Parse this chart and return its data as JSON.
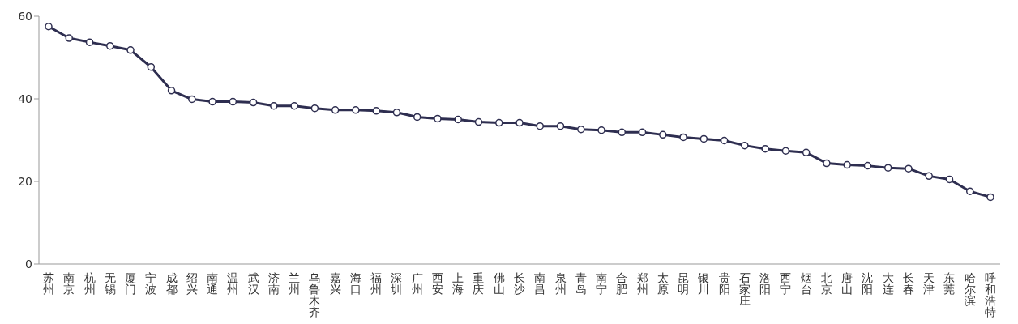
{
  "chart_data": {
    "type": "line",
    "categories": [
      "苏州",
      "南京",
      "杭州",
      "无锡",
      "厦门",
      "宁波",
      "成都",
      "绍兴",
      "南通",
      "温州",
      "武汉",
      "济南",
      "兰州",
      "乌鲁木齐",
      "嘉兴",
      "海口",
      "福州",
      "深圳",
      "广州",
      "西安",
      "上海",
      "重庆",
      "佛山",
      "长沙",
      "南昌",
      "泉州",
      "青岛",
      "南宁",
      "合肥",
      "郑州",
      "太原",
      "昆明",
      "银川",
      "贵阳",
      "石家庄",
      "洛阳",
      "西宁",
      "烟台",
      "北京",
      "唐山",
      "沈阳",
      "大连",
      "长春",
      "天津",
      "东莞",
      "哈尔滨",
      "呼和浩特"
    ],
    "series": [
      {
        "color": "#2e2e50",
        "values": [
          57.5,
          54.7,
          53.7,
          52.8,
          51.8,
          47.7,
          42.0,
          39.9,
          39.3,
          39.3,
          39.1,
          38.3,
          38.3,
          37.7,
          37.3,
          37.3,
          37.1,
          36.7,
          35.6,
          35.2,
          35.0,
          34.4,
          34.2,
          34.2,
          33.4,
          33.4,
          32.6,
          32.4,
          31.9,
          31.9,
          31.3,
          30.7,
          30.3,
          29.9,
          28.7,
          27.9,
          27.4,
          27.0,
          24.4,
          24.0,
          23.8,
          23.3,
          23.1,
          21.3,
          20.5,
          17.6,
          16.2
        ]
      }
    ],
    "ylim": [
      0,
      60
    ],
    "yticks": [
      0,
      20,
      40,
      60
    ],
    "grid": false,
    "legend": false,
    "marker": "circle",
    "line_style": "solid"
  }
}
